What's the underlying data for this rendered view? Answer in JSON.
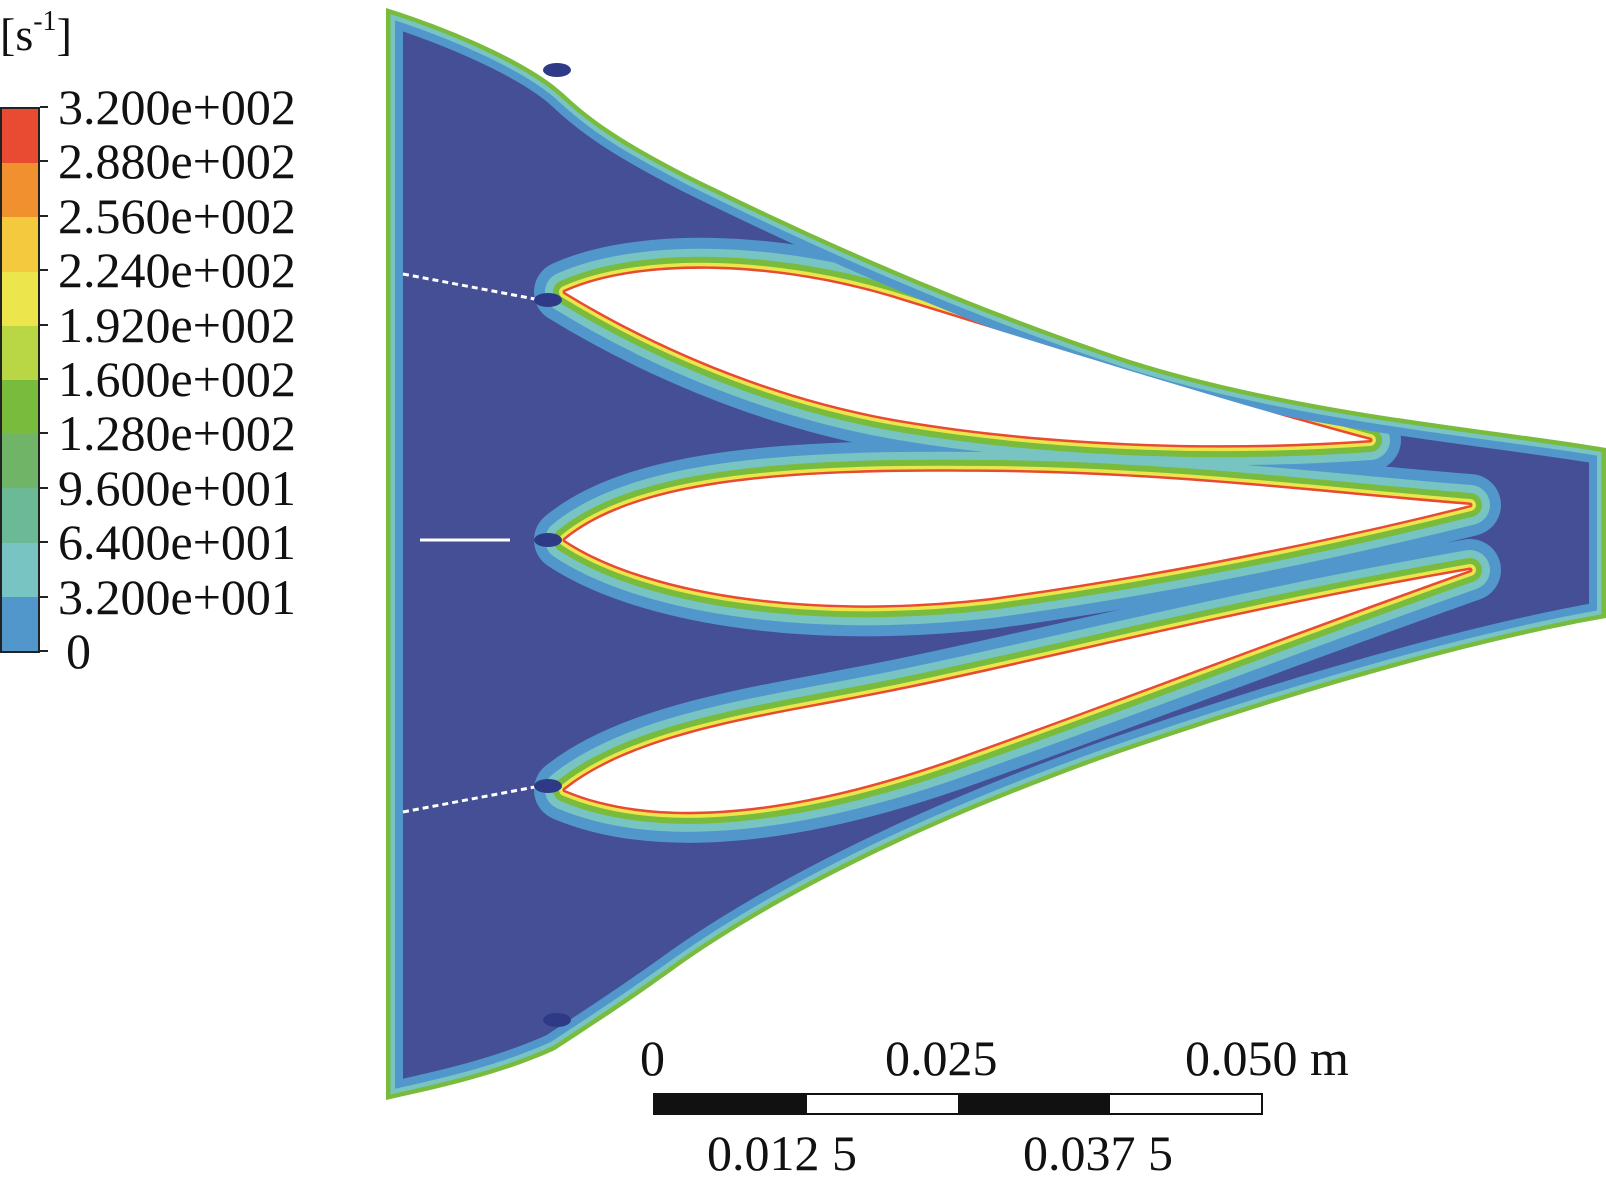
{
  "legend": {
    "unit_base": "[s",
    "unit_exp": "-1",
    "unit_close": "]",
    "labels": [
      "3.200e+002",
      "2.880e+002",
      "2.560e+002",
      "2.240e+002",
      "1.920e+002",
      "1.600e+002",
      "1.280e+002",
      "9.600e+001",
      "6.400e+001",
      "3.200e+001",
      "0"
    ],
    "colors": [
      "#e84a32",
      "#f0902f",
      "#f5c93d",
      "#ece54c",
      "#b9d644",
      "#79bb3c",
      "#6fb467",
      "#6bb996",
      "#77c4c3",
      "#5297cc",
      "#454f95"
    ]
  },
  "scale_bar": {
    "top_labels": [
      "0",
      "0.025",
      "0.050 m"
    ],
    "bottom_labels": [
      "0.012 5",
      "0.037 5"
    ],
    "segment_colors": [
      "#111111",
      "#ffffff",
      "#111111",
      "#ffffff"
    ]
  },
  "field_colors": {
    "core": "#454f95",
    "layer1": "#5297cc",
    "layer2": "#77c4c3",
    "layer3": "#79bb3c",
    "layer4": "#ece54c",
    "peak": "#e84a32"
  }
}
